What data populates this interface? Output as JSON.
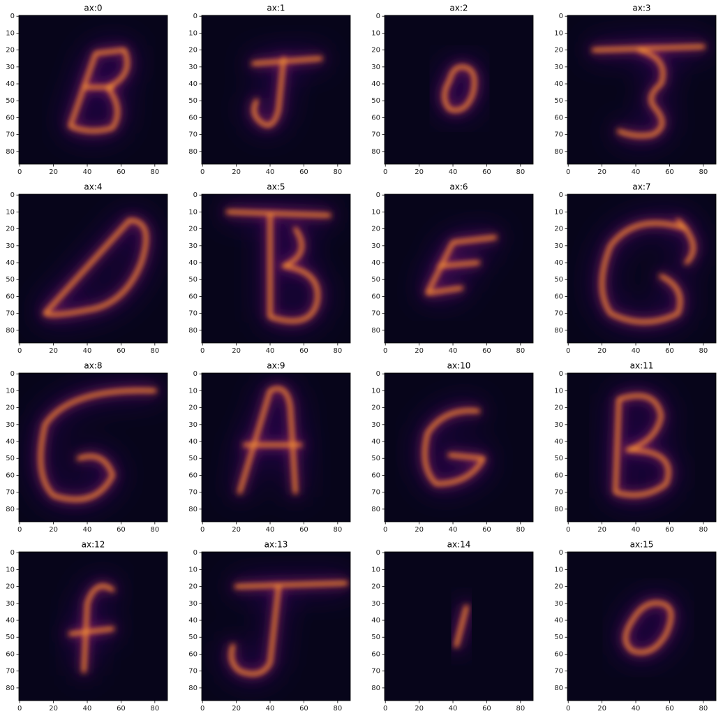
{
  "chart_data": [
    {
      "type": "image",
      "title": "ax:0",
      "xlim": [
        -0.5,
        87.5
      ],
      "ylim": [
        87.5,
        -0.5
      ],
      "xticks": [
        0,
        20,
        40,
        60,
        80
      ],
      "yticks": [
        0,
        10,
        20,
        30,
        40,
        50,
        60,
        70,
        80
      ]
    },
    {
      "type": "image",
      "title": "ax:1",
      "xlim": [
        -0.5,
        87.5
      ],
      "ylim": [
        87.5,
        -0.5
      ],
      "xticks": [
        0,
        20,
        40,
        60,
        80
      ],
      "yticks": [
        0,
        10,
        20,
        30,
        40,
        50,
        60,
        70,
        80
      ]
    },
    {
      "type": "image",
      "title": "ax:2",
      "xlim": [
        -0.5,
        87.5
      ],
      "ylim": [
        87.5,
        -0.5
      ],
      "xticks": [
        0,
        20,
        40,
        60,
        80
      ],
      "yticks": [
        0,
        10,
        20,
        30,
        40,
        50,
        60,
        70,
        80
      ]
    },
    {
      "type": "image",
      "title": "ax:3",
      "xlim": [
        -0.5,
        87.5
      ],
      "ylim": [
        87.5,
        -0.5
      ],
      "xticks": [
        0,
        20,
        40,
        60,
        80
      ],
      "yticks": [
        0,
        10,
        20,
        30,
        40,
        50,
        60,
        70,
        80
      ]
    },
    {
      "type": "image",
      "title": "ax:4",
      "xlim": [
        -0.5,
        87.5
      ],
      "ylim": [
        87.5,
        -0.5
      ],
      "xticks": [
        0,
        20,
        40,
        60,
        80
      ],
      "yticks": [
        0,
        10,
        20,
        30,
        40,
        50,
        60,
        70,
        80
      ]
    },
    {
      "type": "image",
      "title": "ax:5",
      "xlim": [
        -0.5,
        87.5
      ],
      "ylim": [
        87.5,
        -0.5
      ],
      "xticks": [
        0,
        20,
        40,
        60,
        80
      ],
      "yticks": [
        0,
        10,
        20,
        30,
        40,
        50,
        60,
        70,
        80
      ]
    },
    {
      "type": "image",
      "title": "ax:6",
      "xlim": [
        -0.5,
        87.5
      ],
      "ylim": [
        87.5,
        -0.5
      ],
      "xticks": [
        0,
        20,
        40,
        60,
        80
      ],
      "yticks": [
        0,
        10,
        20,
        30,
        40,
        50,
        60,
        70,
        80
      ]
    },
    {
      "type": "image",
      "title": "ax:7",
      "xlim": [
        -0.5,
        87.5
      ],
      "ylim": [
        87.5,
        -0.5
      ],
      "xticks": [
        0,
        20,
        40,
        60,
        80
      ],
      "yticks": [
        0,
        10,
        20,
        30,
        40,
        50,
        60,
        70,
        80
      ]
    },
    {
      "type": "image",
      "title": "ax:8",
      "xlim": [
        -0.5,
        87.5
      ],
      "ylim": [
        87.5,
        -0.5
      ],
      "xticks": [
        0,
        20,
        40,
        60,
        80
      ],
      "yticks": [
        0,
        10,
        20,
        30,
        40,
        50,
        60,
        70,
        80
      ]
    },
    {
      "type": "image",
      "title": "ax:9",
      "xlim": [
        -0.5,
        87.5
      ],
      "ylim": [
        87.5,
        -0.5
      ],
      "xticks": [
        0,
        20,
        40,
        60,
        80
      ],
      "yticks": [
        0,
        10,
        20,
        30,
        40,
        50,
        60,
        70,
        80
      ]
    },
    {
      "type": "image",
      "title": "ax:10",
      "xlim": [
        -0.5,
        87.5
      ],
      "ylim": [
        87.5,
        -0.5
      ],
      "xticks": [
        0,
        20,
        40,
        60,
        80
      ],
      "yticks": [
        0,
        10,
        20,
        30,
        40,
        50,
        60,
        70,
        80
      ]
    },
    {
      "type": "image",
      "title": "ax:11",
      "xlim": [
        -0.5,
        87.5
      ],
      "ylim": [
        87.5,
        -0.5
      ],
      "xticks": [
        0,
        20,
        40,
        60,
        80
      ],
      "yticks": [
        0,
        10,
        20,
        30,
        40,
        50,
        60,
        70,
        80
      ]
    },
    {
      "type": "image",
      "title": "ax:12",
      "xlim": [
        -0.5,
        87.5
      ],
      "ylim": [
        87.5,
        -0.5
      ],
      "xticks": [
        0,
        20,
        40,
        60,
        80
      ],
      "yticks": [
        0,
        10,
        20,
        30,
        40,
        50,
        60,
        70,
        80
      ]
    },
    {
      "type": "image",
      "title": "ax:13",
      "xlim": [
        -0.5,
        87.5
      ],
      "ylim": [
        87.5,
        -0.5
      ],
      "xticks": [
        0,
        20,
        40,
        60,
        80
      ],
      "yticks": [
        0,
        10,
        20,
        30,
        40,
        50,
        60,
        70,
        80
      ]
    },
    {
      "type": "image",
      "title": "ax:14",
      "xlim": [
        -0.5,
        87.5
      ],
      "ylim": [
        87.5,
        -0.5
      ],
      "xticks": [
        0,
        20,
        40,
        60,
        80
      ],
      "yticks": [
        0,
        10,
        20,
        30,
        40,
        50,
        60,
        70,
        80
      ]
    },
    {
      "type": "image",
      "title": "ax:15",
      "xlim": [
        -0.5,
        87.5
      ],
      "ylim": [
        87.5,
        -0.5
      ],
      "xticks": [
        0,
        20,
        40,
        60,
        80
      ],
      "yticks": [
        0,
        10,
        20,
        30,
        40,
        50,
        60,
        70,
        80
      ]
    }
  ]
}
